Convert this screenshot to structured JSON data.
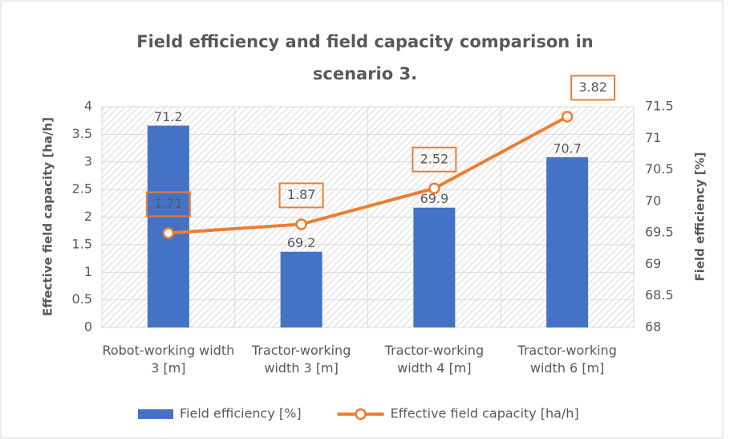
{
  "chart_data": {
    "type": "combo",
    "title": "Field efficiency and field capacity comparison in scenario 3.",
    "categories": [
      "Robot-working width 3 [m]",
      "Tractor-working width 3 [m]",
      "Tractor-working width 4 [m]",
      "Tractor-working width 6 [m]"
    ],
    "series": [
      {
        "name": "Field efficiency [%]",
        "type": "bar",
        "axis": "y2",
        "color": "#4472c4",
        "values": [
          71.2,
          69.2,
          69.9,
          70.7
        ]
      },
      {
        "name": "Effective field capacity [ha/h]",
        "type": "line",
        "axis": "y",
        "color": "#ed7d31",
        "values": [
          1.71,
          1.87,
          2.52,
          3.82
        ]
      }
    ],
    "ylabel": "Effective field capacity [ha/h]",
    "y2label": "Field efficiency [%]",
    "ylim": [
      0,
      4
    ],
    "yticks": [
      0,
      0.5,
      1,
      1.5,
      2,
      2.5,
      3,
      3.5,
      4
    ],
    "y2lim": [
      68,
      71.5
    ],
    "y2ticks": [
      68,
      68.5,
      69,
      69.5,
      70,
      70.5,
      71,
      71.5
    ],
    "grid": true,
    "legend": "bottom"
  }
}
